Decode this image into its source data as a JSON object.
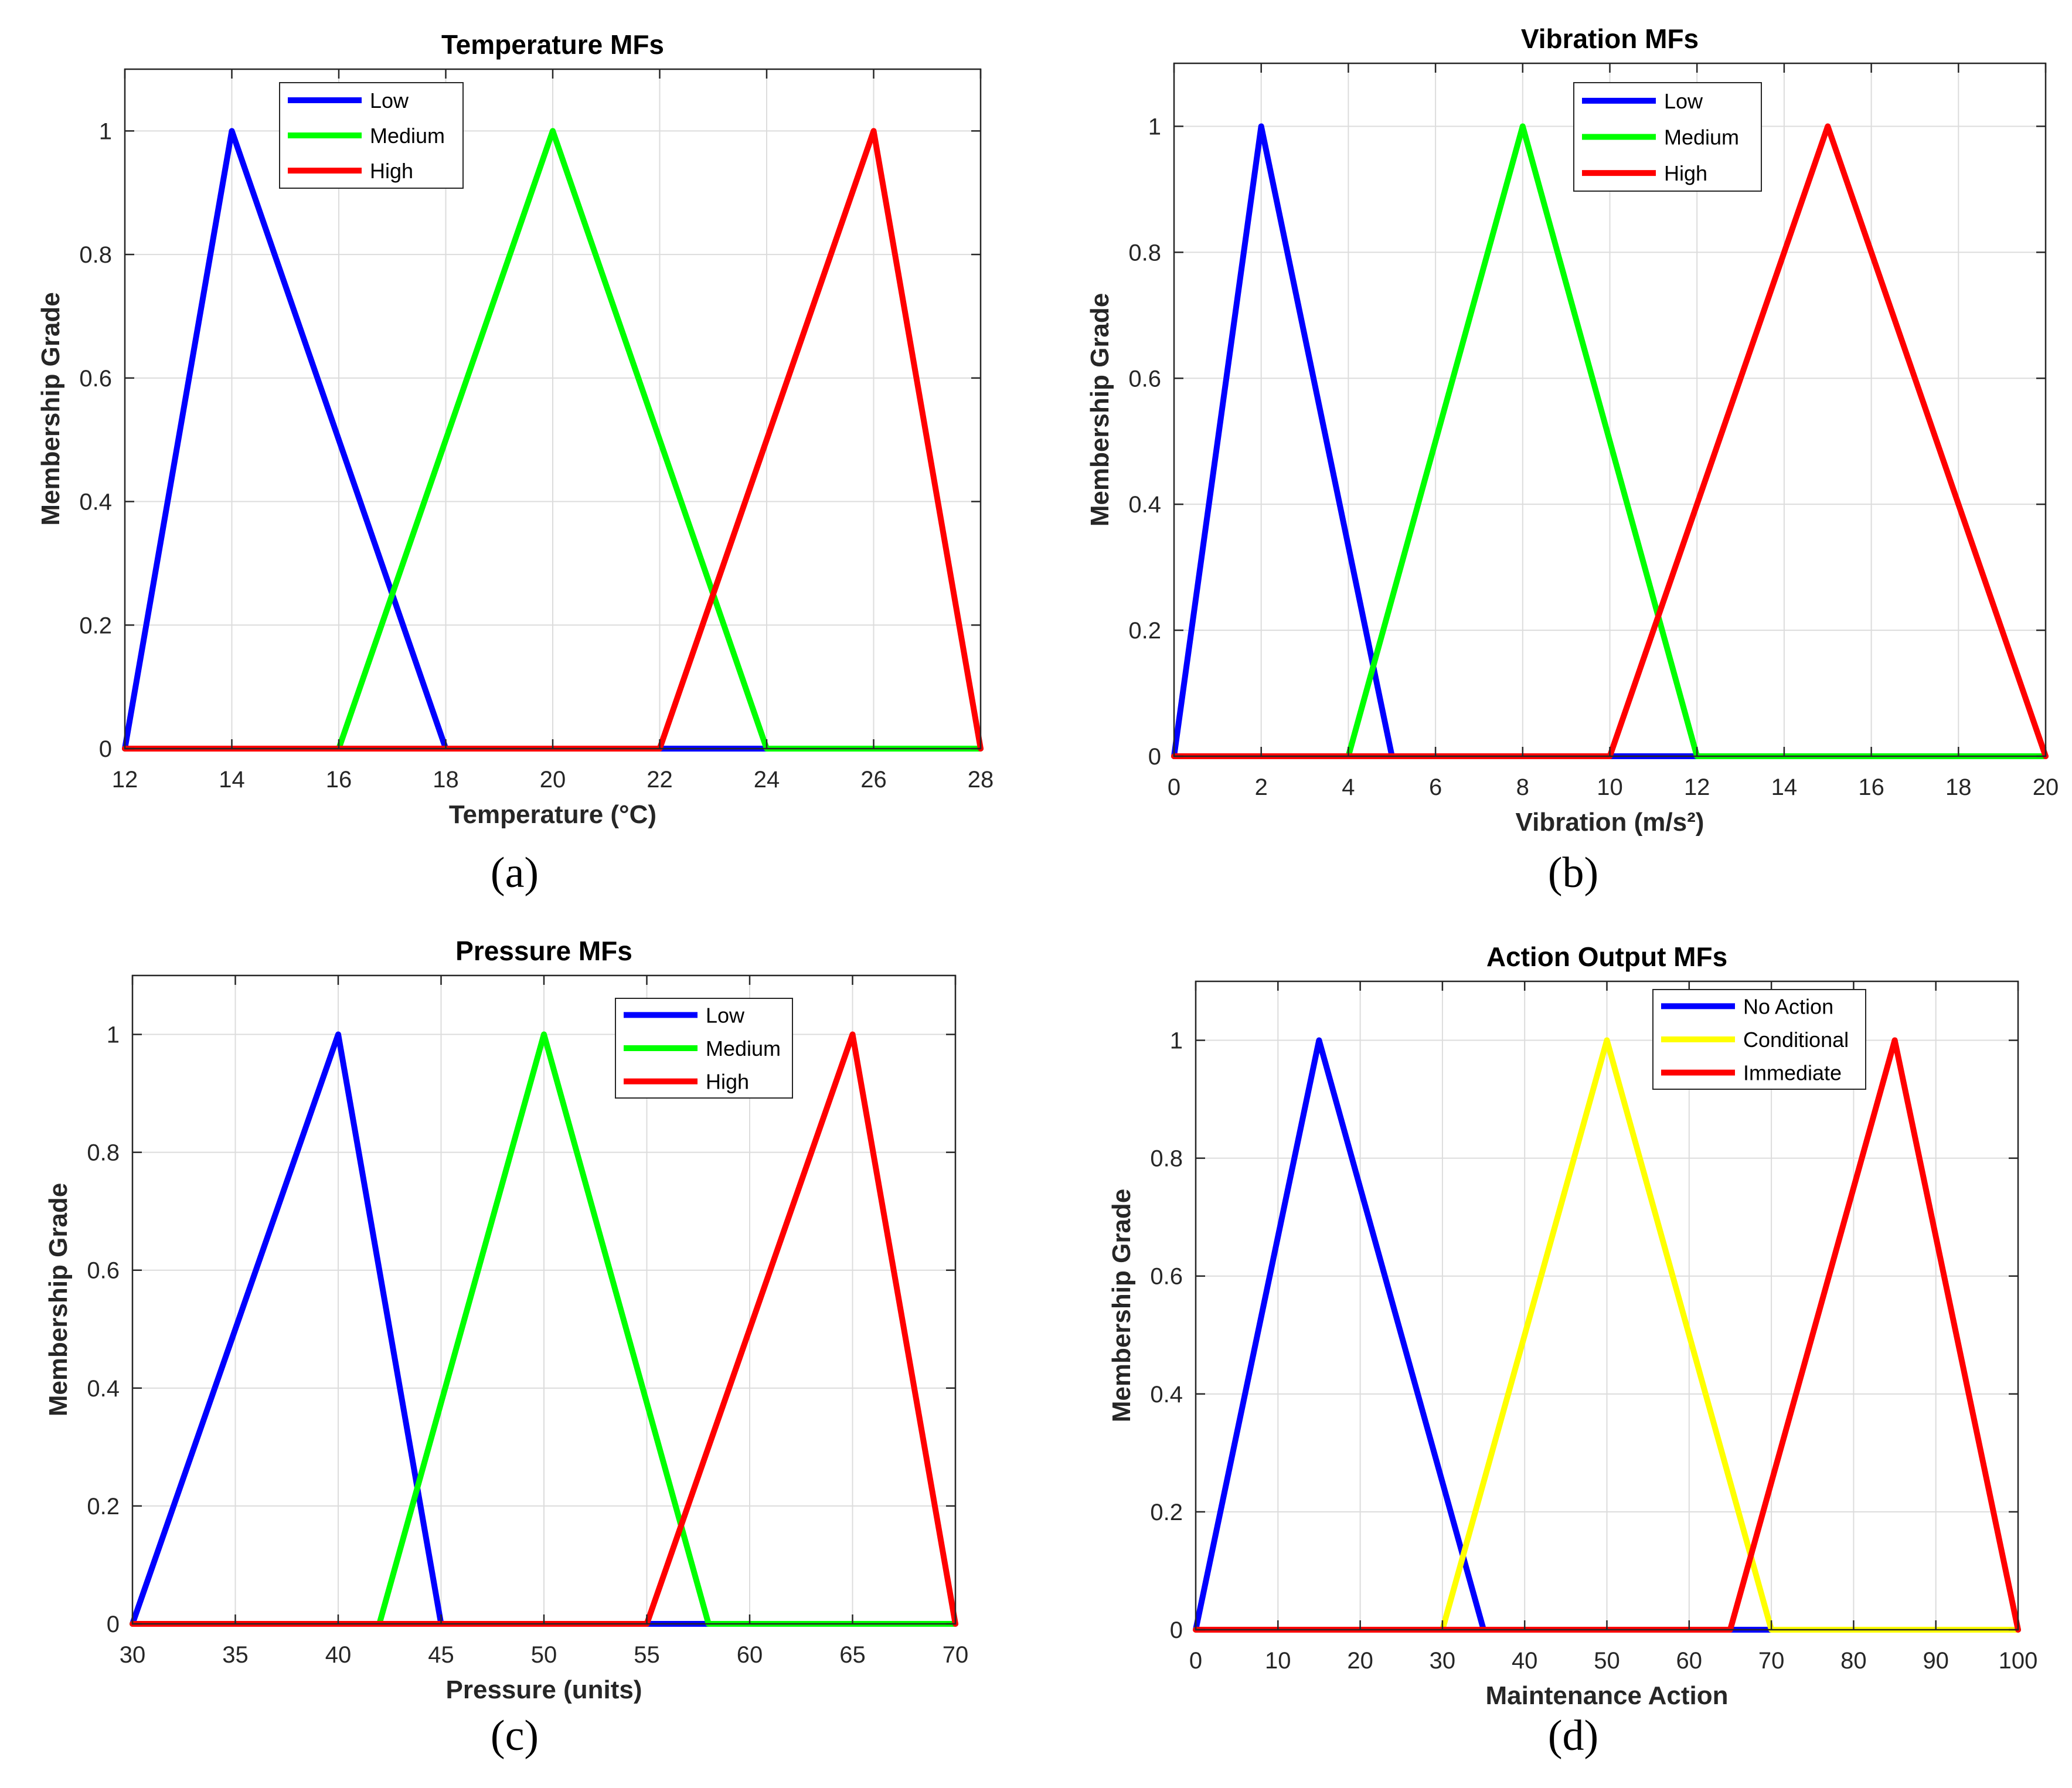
{
  "chart_data": [
    {
      "type": "line",
      "panel_label": "a",
      "caption": "(a)",
      "title": "Temperature MFs",
      "xlabel": "Temperature (°C)",
      "ylabel": "Membership Grade",
      "xlim": [
        12,
        28
      ],
      "ylim": [
        0,
        1.1
      ],
      "xticks": [
        12,
        14,
        16,
        18,
        20,
        22,
        24,
        26,
        28
      ],
      "yticks": [
        0,
        0.2,
        0.4,
        0.6,
        0.8,
        1
      ],
      "ytick_labels": [
        "0",
        "0.2",
        "0.4",
        "0.6",
        "0.8",
        "1"
      ],
      "grid": true,
      "legend_position": "top-left",
      "series": [
        {
          "name": "Low",
          "color": "#0000ff",
          "x": [
            12,
            14,
            18,
            28
          ],
          "y": [
            0,
            1,
            0,
            0
          ]
        },
        {
          "name": "Medium",
          "color": "#00ff00",
          "x": [
            12,
            16,
            20,
            24,
            28
          ],
          "y": [
            0,
            0,
            1,
            0,
            0
          ]
        },
        {
          "name": "High",
          "color": "#ff0000",
          "x": [
            12,
            22,
            26,
            28
          ],
          "y": [
            0,
            0,
            1,
            0
          ]
        }
      ]
    },
    {
      "type": "line",
      "panel_label": "b",
      "caption": "(b)",
      "title": "Vibration MFs",
      "xlabel": "Vibration (m/s²)",
      "ylabel": "Membership Grade",
      "xlim": [
        0,
        20
      ],
      "ylim": [
        0,
        1.1
      ],
      "xticks": [
        0,
        2,
        4,
        6,
        8,
        10,
        12,
        14,
        16,
        18,
        20
      ],
      "yticks": [
        0,
        0.2,
        0.4,
        0.6,
        0.8,
        1
      ],
      "ytick_labels": [
        "0",
        "0.2",
        "0.4",
        "0.6",
        "0.8",
        "1"
      ],
      "grid": true,
      "legend_position": "top-center",
      "series": [
        {
          "name": "Low",
          "color": "#0000ff",
          "x": [
            0,
            2,
            5,
            20
          ],
          "y": [
            0,
            1,
            0,
            0
          ]
        },
        {
          "name": "Medium",
          "color": "#00ff00",
          "x": [
            0,
            4,
            8,
            12,
            20
          ],
          "y": [
            0,
            0,
            1,
            0,
            0
          ]
        },
        {
          "name": "High",
          "color": "#ff0000",
          "x": [
            0,
            10,
            15,
            20
          ],
          "y": [
            0,
            0,
            1,
            0
          ]
        }
      ]
    },
    {
      "type": "line",
      "panel_label": "c",
      "caption": "(c)",
      "title": "Pressure MFs",
      "xlabel": "Pressure (units)",
      "ylabel": "Membership Grade",
      "xlim": [
        30,
        70
      ],
      "ylim": [
        0,
        1.1
      ],
      "xticks": [
        30,
        35,
        40,
        45,
        50,
        55,
        60,
        65,
        70
      ],
      "yticks": [
        0,
        0.2,
        0.4,
        0.6,
        0.8,
        1
      ],
      "ytick_labels": [
        "0",
        "0.2",
        "0.4",
        "0.6",
        "0.8",
        "1"
      ],
      "grid": true,
      "legend_position": "top-right",
      "series": [
        {
          "name": "Low",
          "color": "#0000ff",
          "x": [
            30,
            40,
            45,
            70
          ],
          "y": [
            0,
            1,
            0,
            0
          ]
        },
        {
          "name": "Medium",
          "color": "#00ff00",
          "x": [
            30,
            42,
            50,
            58,
            70
          ],
          "y": [
            0,
            0,
            1,
            0,
            0
          ]
        },
        {
          "name": "High",
          "color": "#ff0000",
          "x": [
            30,
            55,
            65,
            70
          ],
          "y": [
            0,
            0,
            1,
            0
          ]
        }
      ]
    },
    {
      "type": "line",
      "panel_label": "d",
      "caption": "(d)",
      "title": "Action Output MFs",
      "xlabel": "Maintenance Action",
      "ylabel": "Membership Grade",
      "xlim": [
        0,
        100
      ],
      "ylim": [
        0,
        1.1
      ],
      "xticks": [
        0,
        10,
        20,
        30,
        40,
        50,
        60,
        70,
        80,
        90,
        100
      ],
      "yticks": [
        0,
        0.2,
        0.4,
        0.6,
        0.8,
        1
      ],
      "ytick_labels": [
        "0",
        "0.2",
        "0.4",
        "0.6",
        "0.8",
        "1"
      ],
      "grid": true,
      "legend_position": "top-right",
      "series": [
        {
          "name": "No Action",
          "color": "#0000ff",
          "x": [
            0,
            15,
            35,
            100
          ],
          "y": [
            0,
            1,
            0,
            0
          ]
        },
        {
          "name": "Conditional",
          "color": "#ffff00",
          "x": [
            0,
            30,
            50,
            70,
            100
          ],
          "y": [
            0,
            0,
            1,
            0,
            0
          ]
        },
        {
          "name": "Immediate",
          "color": "#ff0000",
          "x": [
            0,
            65,
            85,
            100
          ],
          "y": [
            0,
            0,
            1,
            0
          ]
        }
      ]
    }
  ]
}
